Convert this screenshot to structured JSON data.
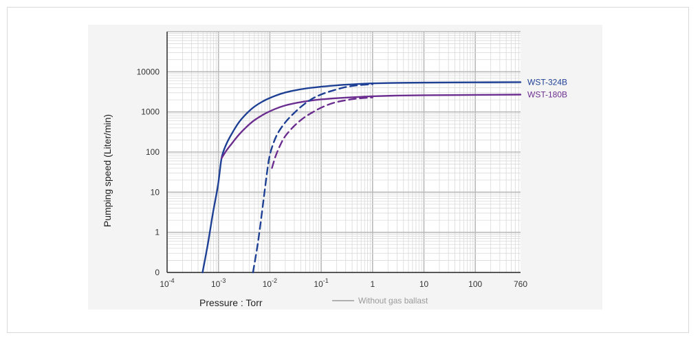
{
  "chart_data": {
    "type": "line",
    "title": "",
    "xlabel": "Pressure : Torr",
    "ylabel": "Pumping speed (Liter/min)",
    "x_scale": "log",
    "y_scale": "log",
    "grid": true,
    "xlim": [
      0.0001,
      760
    ],
    "ylim": [
      0.1,
      100000
    ],
    "x_ticks": [
      {
        "value": 0.0001,
        "base": "10",
        "exp": "-4"
      },
      {
        "value": 0.001,
        "base": "10",
        "exp": "-3"
      },
      {
        "value": 0.01,
        "base": "10",
        "exp": "-2"
      },
      {
        "value": 0.1,
        "base": "10",
        "exp": "-1"
      },
      {
        "value": 1,
        "base": "1",
        "exp": ""
      },
      {
        "value": 10,
        "base": "10",
        "exp": ""
      },
      {
        "value": 100,
        "base": "100",
        "exp": ""
      },
      {
        "value": 760,
        "base": "760",
        "exp": ""
      }
    ],
    "y_ticks": [
      {
        "value": 0.1,
        "label": "0"
      },
      {
        "value": 1,
        "label": "1"
      },
      {
        "value": 10,
        "label": "10"
      },
      {
        "value": 100,
        "label": "100"
      },
      {
        "value": 1000,
        "label": "1000"
      },
      {
        "value": 10000,
        "label": "10000"
      }
    ],
    "series": [
      {
        "name": "WST-324B",
        "color": "#1d3f94",
        "dash": false,
        "points": [
          [
            0.00049,
            0.1
          ],
          [
            0.00062,
            0.5
          ],
          [
            0.00078,
            3
          ],
          [
            0.00098,
            15
          ],
          [
            0.00115,
            70
          ],
          [
            0.0014,
            150
          ],
          [
            0.0018,
            280
          ],
          [
            0.0025,
            550
          ],
          [
            0.0035,
            900
          ],
          [
            0.005,
            1350
          ],
          [
            0.008,
            1950
          ],
          [
            0.013,
            2550
          ],
          [
            0.02,
            3050
          ],
          [
            0.035,
            3550
          ],
          [
            0.06,
            3950
          ],
          [
            0.1,
            4250
          ],
          [
            0.2,
            4600
          ],
          [
            0.5,
            4950
          ],
          [
            1,
            5150
          ],
          [
            3,
            5300
          ],
          [
            10,
            5380
          ],
          [
            100,
            5450
          ],
          [
            760,
            5500
          ]
        ]
      },
      {
        "name": "WST-180B",
        "color": "#6b2d8f",
        "dash": false,
        "points": [
          [
            0.00115,
            70
          ],
          [
            0.0014,
            105
          ],
          [
            0.0018,
            160
          ],
          [
            0.0025,
            270
          ],
          [
            0.0035,
            420
          ],
          [
            0.005,
            620
          ],
          [
            0.008,
            900
          ],
          [
            0.013,
            1200
          ],
          [
            0.02,
            1450
          ],
          [
            0.035,
            1700
          ],
          [
            0.06,
            1900
          ],
          [
            0.1,
            2050
          ],
          [
            0.2,
            2200
          ],
          [
            0.5,
            2350
          ],
          [
            1,
            2450
          ],
          [
            3,
            2550
          ],
          [
            10,
            2600
          ],
          [
            100,
            2650
          ],
          [
            760,
            2700
          ]
        ]
      },
      {
        "name": "",
        "color": "#1d3f94",
        "dash": true,
        "points": [
          [
            0.0047,
            0.1
          ],
          [
            0.0058,
            0.5
          ],
          [
            0.007,
            3
          ],
          [
            0.0082,
            15
          ],
          [
            0.0095,
            60
          ],
          [
            0.011,
            130
          ],
          [
            0.014,
            280
          ],
          [
            0.02,
            550
          ],
          [
            0.03,
            950
          ],
          [
            0.045,
            1500
          ],
          [
            0.07,
            2200
          ],
          [
            0.11,
            2850
          ],
          [
            0.18,
            3500
          ],
          [
            0.3,
            4150
          ],
          [
            0.5,
            4600
          ],
          [
            1,
            4900
          ]
        ]
      },
      {
        "name": "",
        "color": "#6b2d8f",
        "dash": true,
        "points": [
          [
            0.011,
            40
          ],
          [
            0.013,
            80
          ],
          [
            0.016,
            150
          ],
          [
            0.02,
            250
          ],
          [
            0.03,
            450
          ],
          [
            0.045,
            700
          ],
          [
            0.07,
            1000
          ],
          [
            0.11,
            1350
          ],
          [
            0.18,
            1700
          ],
          [
            0.3,
            1950
          ],
          [
            0.5,
            2150
          ],
          [
            1,
            2300
          ]
        ]
      }
    ],
    "series_labels": [
      "WST-324B",
      "WST-180B"
    ],
    "legend": {
      "placement": "bottom-right",
      "color": "#9a9a9a",
      "entries": [
        {
          "label": "Without gas ballast",
          "dash": false
        }
      ]
    }
  }
}
